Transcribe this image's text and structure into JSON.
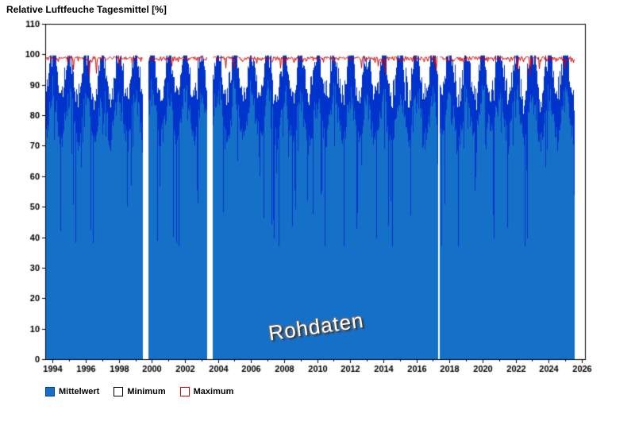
{
  "chart_data": {
    "type": "area",
    "title": "Relative Luftfeuche Tagesmittel [%]",
    "watermark": "Rohdaten",
    "xlabel": "",
    "ylabel": "",
    "ylim": [
      0,
      110
    ],
    "y_ticks": [
      0,
      10,
      20,
      30,
      40,
      50,
      60,
      70,
      80,
      90,
      100,
      110
    ],
    "x_range": [
      1993.55,
      2026.2
    ],
    "x_ticks": [
      1994,
      1996,
      1998,
      2000,
      2002,
      2004,
      2006,
      2008,
      2010,
      2012,
      2014,
      2016,
      2018,
      2020,
      2022,
      2024,
      2026
    ],
    "x_minor_step": 1,
    "data_start": 1993.56,
    "data_end": 2025.55,
    "background": "#FFFFFF",
    "axis_color": "#000000",
    "grid": false,
    "legend_position": "bottom-left",
    "series": [
      {
        "name": "Mittelwert",
        "kind": "area",
        "fill": "#1570C8",
        "stroke": "#0033CC",
        "swatch_fill": "#1570C8",
        "swatch_border": "#0033CC"
      },
      {
        "name": "Minimum",
        "kind": "line",
        "stroke": "#000000",
        "swatch_fill": "#FFFFFF",
        "swatch_border": "#000000"
      },
      {
        "name": "Maximum",
        "kind": "line",
        "stroke": "#D40000",
        "swatch_fill": "#FFFFFF",
        "swatch_border": "#D40000"
      }
    ],
    "gaps": [
      {
        "start": 1999.45,
        "end": 1999.75
      },
      {
        "start": 2003.3,
        "end": 2003.65
      },
      {
        "start": 2017.3,
        "end": 2017.4
      }
    ],
    "value_summary": {
      "mean_typical_range": [
        60,
        100
      ],
      "mean_extreme_min": 39,
      "max_typical_range": [
        97,
        100
      ],
      "max_dip_min": 93,
      "seasonality": "winter means near 93-100, summer means lower (~75-90) with spikes down to 40-60"
    },
    "generation": {
      "seed": 7,
      "base": 86.5,
      "seasonal_amp": 7.5,
      "noise_sd": 4.8,
      "samples_per_pixel": 9,
      "dip_prob": 0.02,
      "dip_depth": [
        8,
        38
      ],
      "clamp": [
        37,
        99.6
      ],
      "max_base": 99.3,
      "max_jitter": 0.8,
      "max_dip_prob": 0.05,
      "max_dip_depth": 4.5,
      "max_clamp": [
        92.5,
        100
      ]
    }
  }
}
